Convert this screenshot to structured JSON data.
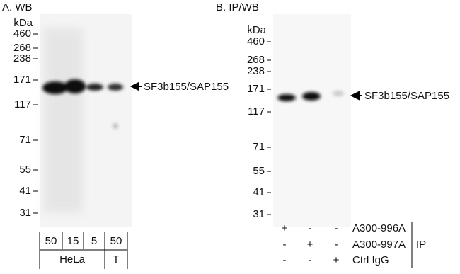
{
  "panels": [
    {
      "label": "A. WB",
      "marker_unit": "kDa",
      "markers": [
        "460",
        "268",
        "238",
        "171",
        "117",
        "71",
        "55",
        "41",
        "31"
      ],
      "band_label": "SF3b155/SAP155",
      "lanes": [
        "50",
        "15",
        "5",
        "50"
      ],
      "groups": [
        "HeLa",
        "T"
      ]
    },
    {
      "label": "B. IP/WB",
      "marker_unit": "kDa",
      "markers": [
        "460",
        "268",
        "238",
        "171",
        "117",
        "71",
        "55",
        "41",
        "31"
      ],
      "band_label": "SF3b155/SAP155",
      "rows": [
        {
          "name": "A300-996A",
          "signs": [
            "+",
            "-",
            "-"
          ]
        },
        {
          "name": "A300-997A",
          "signs": [
            "-",
            "+",
            "-"
          ]
        },
        {
          "name": "Ctrl IgG",
          "signs": [
            "-",
            "-",
            "+"
          ]
        }
      ],
      "ip_label": "IP"
    }
  ]
}
